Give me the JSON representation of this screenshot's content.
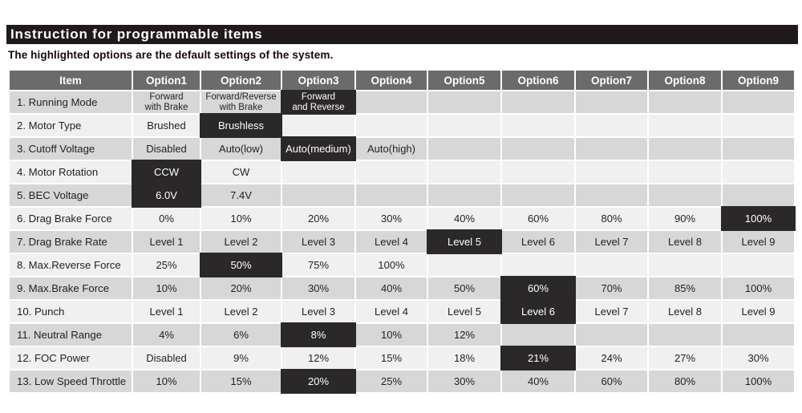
{
  "title": "Instruction for programmable items",
  "subtitle": "The highlighted options are the default settings of the system.",
  "colors": {
    "title_bar_bg": "#201a1b",
    "title_text": "#ffffff",
    "header_bg": "#6a6b6a",
    "header_text": "#ffffff",
    "row_odd_bg": "#d7d7d7",
    "row_even_bg": "#f0f0f0",
    "highlight_bg": "#2b2829",
    "highlight_text": "#ffffff",
    "cell_text": "#231f20"
  },
  "table": {
    "headers": [
      "Item",
      "Option1",
      "Option2",
      "Option3",
      "Option4",
      "Option5",
      "Option6",
      "Option7",
      "Option8",
      "Option9"
    ],
    "rows": [
      {
        "item": "1. Running Mode",
        "options": [
          "Forward\nwith Brake",
          "Forward/Reverse\nwith Brake",
          "Forward\nand Reverse",
          "",
          "",
          "",
          "",
          "",
          ""
        ],
        "highlight_index": 2
      },
      {
        "item": "2. Motor Type",
        "options": [
          "Brushed",
          "Brushless",
          "",
          "",
          "",
          "",
          "",
          "",
          ""
        ],
        "highlight_index": 1
      },
      {
        "item": "3. Cutoff Voltage",
        "options": [
          "Disabled",
          "Auto(low)",
          "Auto(medium)",
          "Auto(high)",
          "",
          "",
          "",
          "",
          ""
        ],
        "highlight_index": 2
      },
      {
        "item": "4. Motor Rotation",
        "options": [
          "CCW",
          "CW",
          "",
          "",
          "",
          "",
          "",
          "",
          ""
        ],
        "highlight_index": 0
      },
      {
        "item": "5. BEC Voltage",
        "options": [
          "6.0V",
          "7.4V",
          "",
          "",
          "",
          "",
          "",
          "",
          ""
        ],
        "highlight_index": 0
      },
      {
        "item": "6. Drag Brake Force",
        "options": [
          "0%",
          "10%",
          "20%",
          "30%",
          "40%",
          "60%",
          "80%",
          "90%",
          "100%"
        ],
        "highlight_index": 8
      },
      {
        "item": "7. Drag Brake Rate",
        "options": [
          "Level 1",
          "Level 2",
          "Level 3",
          "Level 4",
          "Level 5",
          "Level 6",
          "Level 7",
          "Level 8",
          "Level 9"
        ],
        "highlight_index": 4
      },
      {
        "item": "8. Max.Reverse Force",
        "options": [
          "25%",
          "50%",
          "75%",
          "100%",
          "",
          "",
          "",
          "",
          ""
        ],
        "highlight_index": 1
      },
      {
        "item": "9. Max.Brake Force",
        "options": [
          "10%",
          "20%",
          "30%",
          "40%",
          "50%",
          "60%",
          "70%",
          "85%",
          "100%"
        ],
        "highlight_index": 5
      },
      {
        "item": "10. Punch",
        "options": [
          "Level 1",
          "Level 2",
          "Level 3",
          "Level 4",
          "Level 5",
          "Level 6",
          "Level 7",
          "Level 8",
          "Level 9"
        ],
        "highlight_index": 5
      },
      {
        "item": "11. Neutral Range",
        "options": [
          "4%",
          "6%",
          "8%",
          "10%",
          "12%",
          "",
          "",
          "",
          ""
        ],
        "highlight_index": 2
      },
      {
        "item": "12. FOC Power",
        "options": [
          "Disabled",
          "9%",
          "12%",
          "15%",
          "18%",
          "21%",
          "24%",
          "27%",
          "30%"
        ],
        "highlight_index": 5
      },
      {
        "item": "13. Low Speed Throttle",
        "options": [
          "10%",
          "15%",
          "20%",
          "25%",
          "30%",
          "40%",
          "60%",
          "80%",
          "100%"
        ],
        "highlight_index": 2
      }
    ]
  }
}
